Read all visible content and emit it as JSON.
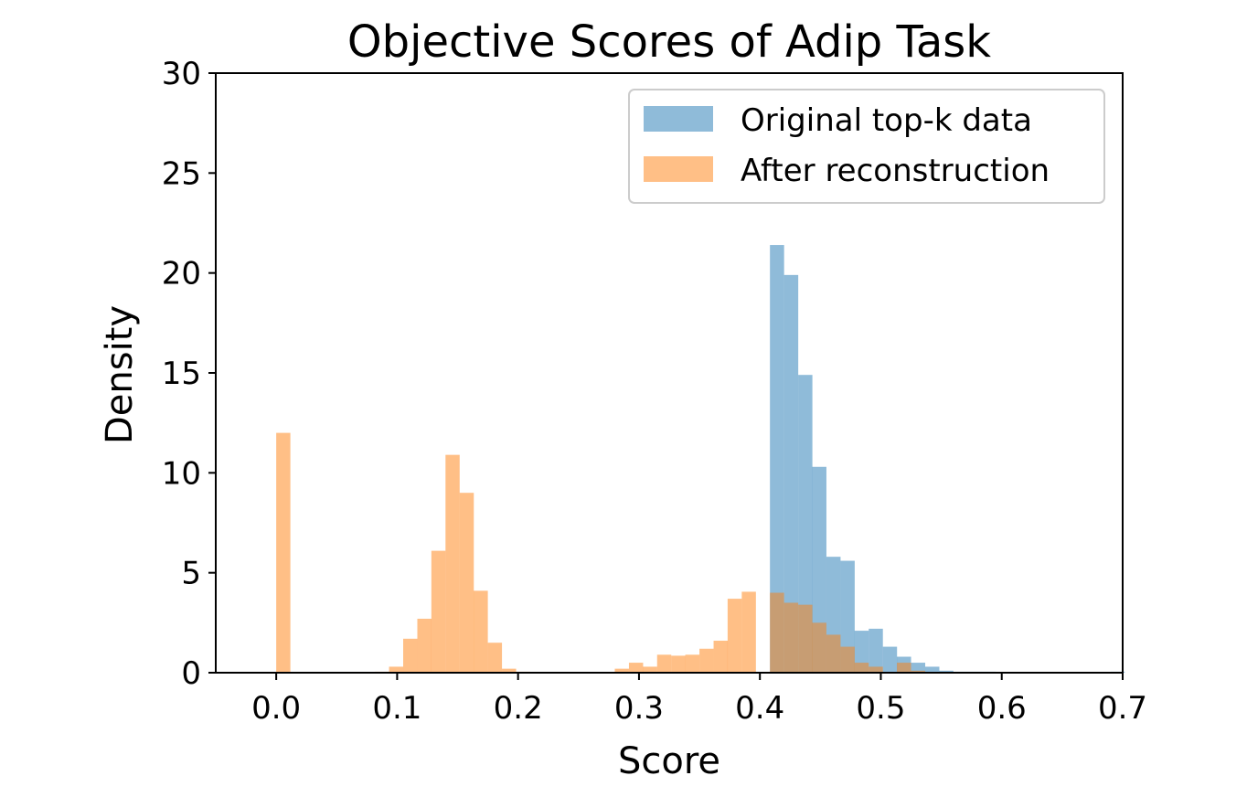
{
  "chart_data": {
    "type": "histogram",
    "title": "Objective Scores of Adip Task",
    "xlabel": "Score",
    "ylabel": "Density",
    "xlim": [
      -0.05,
      0.7
    ],
    "ylim": [
      0,
      30
    ],
    "xticks": [
      "0.0",
      "0.1",
      "0.2",
      "0.3",
      "0.4",
      "0.5",
      "0.6",
      "0.7"
    ],
    "xtick_values": [
      0.0,
      0.1,
      0.2,
      0.3,
      0.4,
      0.5,
      0.6,
      0.7
    ],
    "yticks": [
      "0",
      "5",
      "10",
      "15",
      "20",
      "25",
      "30"
    ],
    "ytick_values": [
      0,
      5,
      10,
      15,
      20,
      25,
      30
    ],
    "legend_position": "upper right",
    "bin_width": 0.0117,
    "series": [
      {
        "name": "Original top-k data",
        "color": "#1f77b4",
        "alpha": 0.5,
        "bins": [
          [
            0.4083,
            21.4
          ],
          [
            0.42,
            19.9
          ],
          [
            0.4317,
            14.9
          ],
          [
            0.4433,
            10.3
          ],
          [
            0.455,
            5.8
          ],
          [
            0.4667,
            5.6
          ],
          [
            0.4783,
            2.1
          ],
          [
            0.49,
            2.2
          ],
          [
            0.5017,
            1.3
          ],
          [
            0.5133,
            0.8
          ],
          [
            0.525,
            0.5
          ],
          [
            0.5367,
            0.3
          ],
          [
            0.5483,
            0.1
          ],
          [
            0.56,
            0.05
          ],
          [
            0.5717,
            0.05
          ],
          [
            0.5833,
            0.05
          ],
          [
            0.69,
            0.05
          ]
        ]
      },
      {
        "name": "After reconstruction",
        "color": "#ff7f0e",
        "alpha": 0.5,
        "bins": [
          [
            0.0,
            12.0
          ],
          [
            0.0817,
            0.05
          ],
          [
            0.0933,
            0.3
          ],
          [
            0.105,
            1.7
          ],
          [
            0.1167,
            2.7
          ],
          [
            0.1283,
            6.1
          ],
          [
            0.14,
            10.9
          ],
          [
            0.1517,
            9.0
          ],
          [
            0.1633,
            4.1
          ],
          [
            0.175,
            1.5
          ],
          [
            0.1867,
            0.2
          ],
          [
            0.1983,
            0.05
          ],
          [
            0.28,
            0.2
          ],
          [
            0.2917,
            0.5
          ],
          [
            0.3033,
            0.3
          ],
          [
            0.315,
            0.9
          ],
          [
            0.3267,
            0.85
          ],
          [
            0.3383,
            0.9
          ],
          [
            0.35,
            1.2
          ],
          [
            0.3617,
            1.6
          ],
          [
            0.3733,
            3.7
          ],
          [
            0.385,
            4.05
          ],
          [
            0.4083,
            4.0
          ],
          [
            0.42,
            3.5
          ],
          [
            0.4317,
            3.4
          ],
          [
            0.4433,
            2.5
          ],
          [
            0.455,
            1.9
          ],
          [
            0.4667,
            1.3
          ],
          [
            0.4783,
            0.5
          ],
          [
            0.49,
            0.3
          ],
          [
            0.5133,
            0.5
          ],
          [
            0.525,
            0.1
          ]
        ]
      }
    ]
  }
}
